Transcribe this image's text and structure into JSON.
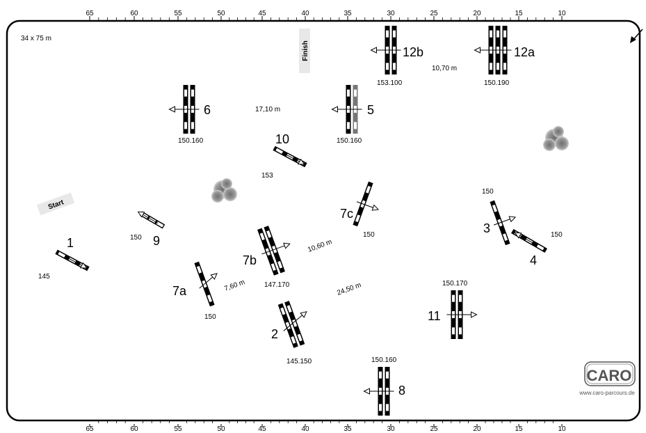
{
  "ruler": {
    "ticks": [
      "65",
      "60",
      "55",
      "50",
      "45",
      "40",
      "35",
      "30",
      "25",
      "20",
      "15",
      "10"
    ]
  },
  "arena": {
    "size": "34 x 75 m"
  },
  "labels": {
    "start": "Start",
    "finish": "Finish"
  },
  "obstacles": [
    {
      "id": "o1",
      "number": "1",
      "height": "145"
    },
    {
      "id": "o2",
      "number": "2",
      "height": "145.150"
    },
    {
      "id": "o3",
      "number": "3",
      "height": "150"
    },
    {
      "id": "o4",
      "number": "4",
      "height": "150"
    },
    {
      "id": "o5",
      "number": "5",
      "height": "150.160"
    },
    {
      "id": "o6",
      "number": "6",
      "height": "150.160"
    },
    {
      "id": "o7a",
      "number": "7a",
      "height": "150"
    },
    {
      "id": "o7b",
      "number": "7b",
      "height": "147.170"
    },
    {
      "id": "o7c",
      "number": "7c",
      "height": "150"
    },
    {
      "id": "o8",
      "number": "8",
      "height": "150.160"
    },
    {
      "id": "o9",
      "number": "9",
      "height": "150"
    },
    {
      "id": "o10",
      "number": "10",
      "height": "153"
    },
    {
      "id": "o11",
      "number": "11",
      "height": "150.170"
    },
    {
      "id": "o12a",
      "number": "12a",
      "height": "150.190"
    },
    {
      "id": "o12b",
      "number": "12b",
      "height": "153.100"
    }
  ],
  "distances": [
    "17,10 m",
    "10,70 m",
    "10,60 m",
    "7,60 m",
    "24,50 m"
  ],
  "brand": {
    "logo": "CARO",
    "url": "www.caro-parcours.de"
  },
  "colors": {
    "rail": "#000000",
    "stripe": "#ffffff",
    "bush": "#8a8a8a",
    "ribbon": "#e8e8e8"
  }
}
